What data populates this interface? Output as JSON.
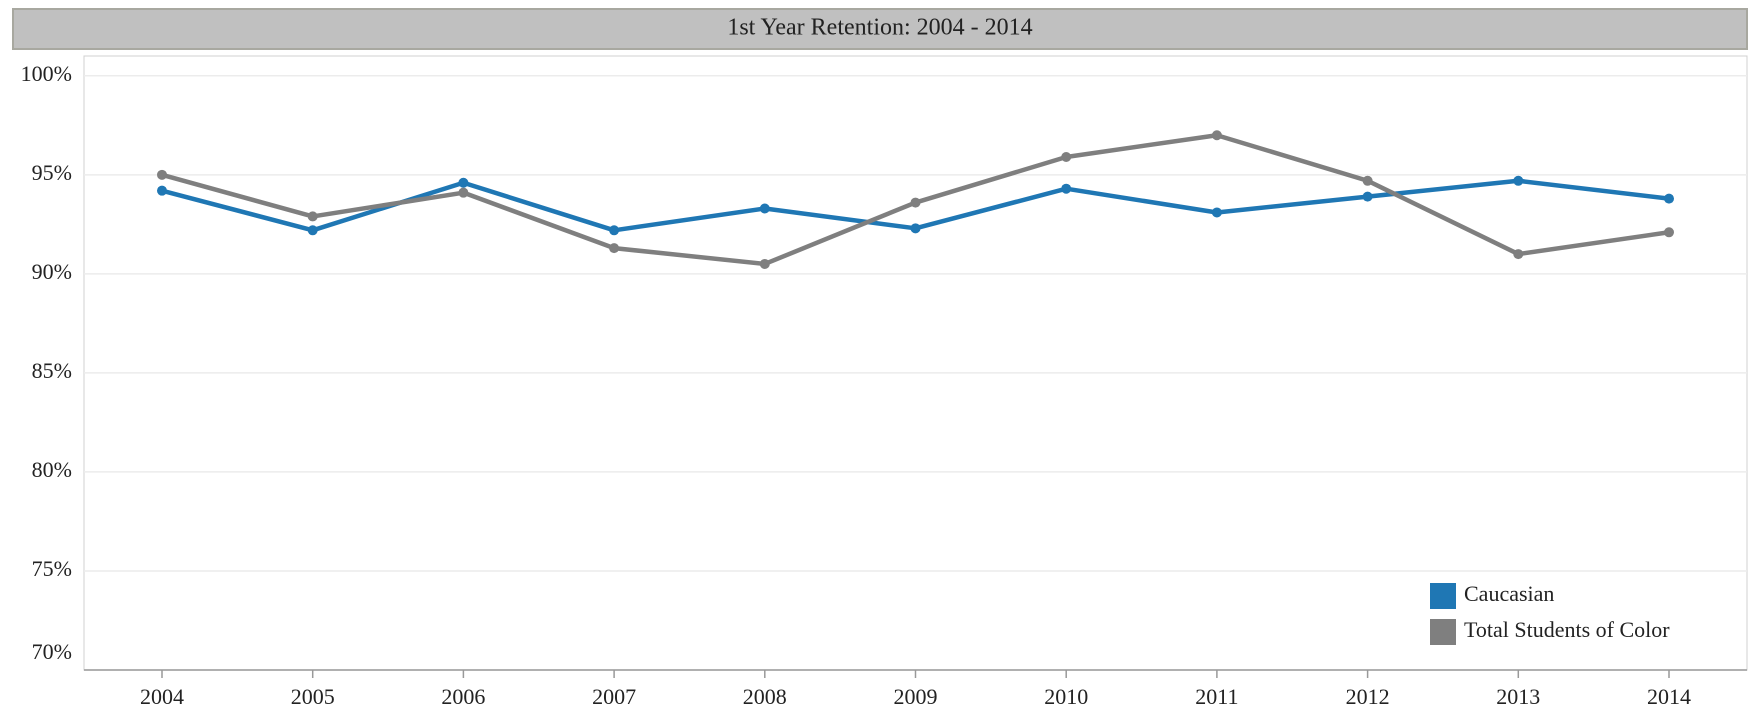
{
  "chart_data": {
    "type": "line",
    "title": "1st Year Retention: 2004 - 2014",
    "categories": [
      "2004",
      "2005",
      "2006",
      "2007",
      "2008",
      "2009",
      "2010",
      "2011",
      "2012",
      "2013",
      "2014"
    ],
    "series": [
      {
        "name": "Caucasian",
        "color": "#1f77b4",
        "values": [
          94.2,
          92.2,
          94.6,
          92.2,
          93.3,
          92.3,
          94.3,
          93.1,
          93.9,
          94.7,
          93.8
        ]
      },
      {
        "name": "Total Students of Color",
        "color": "#7f7f7f",
        "values": [
          95.0,
          92.9,
          94.1,
          91.3,
          90.5,
          93.6,
          95.9,
          97.0,
          94.7,
          91.0,
          92.1
        ]
      }
    ],
    "ylim": [
      70,
      101
    ],
    "yticks": [
      {
        "value": 70,
        "label": "70%"
      },
      {
        "value": 75,
        "label": "75%"
      },
      {
        "value": 80,
        "label": "80%"
      },
      {
        "value": 85,
        "label": "85%"
      },
      {
        "value": 90,
        "label": "90%"
      },
      {
        "value": 95,
        "label": "95%"
      },
      {
        "value": 100,
        "label": "100%"
      }
    ],
    "grid": true,
    "legend": "lower right"
  }
}
